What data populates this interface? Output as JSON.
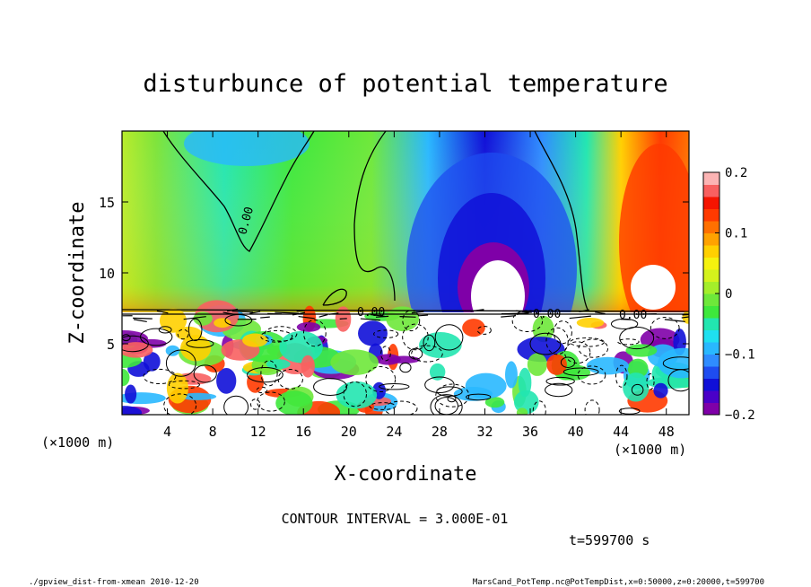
{
  "chart_data": {
    "type": "heatmap",
    "title": "disturbunce of potential temperature",
    "xlabel": "X-coordinate",
    "ylabel": "Z-coordinate",
    "x_unit_left": "(×1000 m)",
    "x_unit_right": "(×1000 m)",
    "xlim": [
      0,
      50
    ],
    "ylim": [
      0,
      20
    ],
    "x_ticks": [
      4,
      8,
      12,
      16,
      20,
      24,
      28,
      32,
      36,
      40,
      44,
      48
    ],
    "y_ticks": [
      5,
      10,
      15
    ],
    "colorbar": {
      "range": [
        -0.2,
        0.2
      ],
      "ticks": [
        "0.2",
        "0.1",
        "0",
        "−0.1",
        "−0.2"
      ],
      "colors": [
        "#7f00a8",
        "#4a00c8",
        "#1010d8",
        "#1e4cf0",
        "#2f8cff",
        "#29b8ff",
        "#1fe0f0",
        "#22e6b0",
        "#3ee83c",
        "#6ee83a",
        "#a4ee2a",
        "#d4f21c",
        "#f5f20e",
        "#ffd000",
        "#ffa200",
        "#ff7000",
        "#ff3a00",
        "#f51400",
        "#f86060",
        "#fcb4b4"
      ]
    },
    "contour_labels": [
      "0.00",
      "0.00",
      "0.00",
      "0.00"
    ],
    "contour_interval": "CONTOUR INTERVAL = 3.000E-01",
    "time": "t=599700 s",
    "footer_left": "./gpview_dist-from-xmean  2010-12-20",
    "footer_right": "MarsCand_PotTemp.nc@PotTempDist,x=0:50000,z=0:20000,t=599700"
  }
}
